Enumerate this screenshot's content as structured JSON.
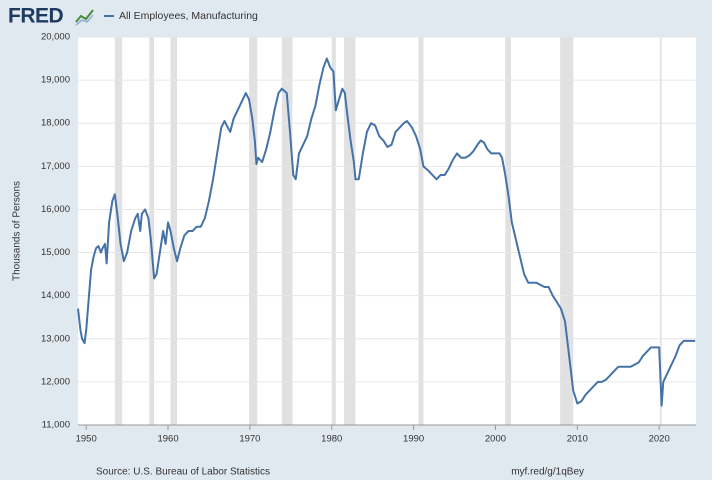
{
  "chart_data": {
    "type": "line",
    "logo": "FRED",
    "axis_label_y": "Thousands of Persons",
    "source": "Source: U.S. Bureau of Labor Statistics",
    "link": "myf.red/g/1qBey",
    "xlim": [
      1949,
      2024.5
    ],
    "xticks": [
      1950,
      1960,
      1970,
      1980,
      1990,
      2000,
      2010,
      2020
    ],
    "ylim": [
      11000,
      20000
    ],
    "yticks": [
      {
        "value": 11000,
        "label": "11,000"
      },
      {
        "value": 12000,
        "label": "12,000"
      },
      {
        "value": 13000,
        "label": "13,000"
      },
      {
        "value": 14000,
        "label": "14,000"
      },
      {
        "value": 15000,
        "label": "15,000"
      },
      {
        "value": 16000,
        "label": "16,000"
      },
      {
        "value": 17000,
        "label": "17,000"
      },
      {
        "value": 18000,
        "label": "18,000"
      },
      {
        "value": 19000,
        "label": "19,000"
      },
      {
        "value": 20000,
        "label": "20,000"
      }
    ],
    "grid": true,
    "recession_color": "#e1e1e1",
    "recessions": [
      [
        1953.5,
        1954.4
      ],
      [
        1957.7,
        1958.3
      ],
      [
        1960.3,
        1961.1
      ],
      [
        1969.9,
        1970.9
      ],
      [
        1973.9,
        1975.2
      ],
      [
        1980.0,
        1980.5
      ],
      [
        1981.5,
        1982.9
      ],
      [
        1990.6,
        1991.2
      ],
      [
        2001.2,
        2001.9
      ],
      [
        2007.9,
        2009.5
      ],
      [
        2020.1,
        2020.3
      ]
    ],
    "x": [
      1949.0,
      1949.3,
      1949.5,
      1949.8,
      1950.0,
      1950.3,
      1950.6,
      1950.9,
      1951.2,
      1951.5,
      1951.8,
      1952.0,
      1952.3,
      1952.5,
      1952.8,
      1953.2,
      1953.5,
      1953.8,
      1954.2,
      1954.6,
      1955.0,
      1955.5,
      1956.0,
      1956.3,
      1956.6,
      1956.8,
      1957.2,
      1957.6,
      1957.9,
      1958.3,
      1958.6,
      1959.0,
      1959.4,
      1959.7,
      1960.0,
      1960.3,
      1960.7,
      1961.1,
      1961.5,
      1962.0,
      1962.5,
      1963.0,
      1963.5,
      1964.0,
      1964.5,
      1965.0,
      1965.5,
      1966.0,
      1966.5,
      1966.9,
      1967.3,
      1967.6,
      1968.0,
      1968.5,
      1969.0,
      1969.5,
      1969.9,
      1970.3,
      1970.6,
      1970.8,
      1971.0,
      1971.5,
      1972.0,
      1972.5,
      1973.0,
      1973.5,
      1973.9,
      1974.5,
      1974.9,
      1975.3,
      1975.6,
      1976.0,
      1976.5,
      1977.0,
      1977.5,
      1978.0,
      1978.5,
      1979.0,
      1979.4,
      1979.8,
      1980.2,
      1980.5,
      1980.8,
      1981.3,
      1981.6,
      1981.9,
      1982.3,
      1982.7,
      1982.9,
      1983.3,
      1983.8,
      1984.3,
      1984.8,
      1985.3,
      1985.8,
      1986.3,
      1986.8,
      1987.3,
      1987.8,
      1988.3,
      1988.8,
      1989.2,
      1989.8,
      1990.3,
      1990.8,
      1991.2,
      1991.8,
      1992.3,
      1992.8,
      1993.3,
      1993.8,
      1994.3,
      1994.8,
      1995.3,
      1995.8,
      1996.3,
      1996.8,
      1997.3,
      1997.8,
      1998.2,
      1998.6,
      1999.0,
      1999.5,
      2000.0,
      2000.5,
      2000.8,
      2001.2,
      2001.6,
      2002.0,
      2002.5,
      2003.0,
      2003.5,
      2004.0,
      2004.5,
      2005.0,
      2005.5,
      2006.0,
      2006.5,
      2007.0,
      2007.5,
      2008.0,
      2008.5,
      2009.0,
      2009.5,
      2010.0,
      2010.5,
      2011.0,
      2011.5,
      2012.0,
      2012.5,
      2013.0,
      2013.5,
      2014.0,
      2014.5,
      2015.0,
      2015.5,
      2016.0,
      2016.5,
      2017.0,
      2017.5,
      2018.0,
      2018.5,
      2019.0,
      2019.5,
      2020.0,
      2020.3,
      2020.5,
      2021.0,
      2021.5,
      2022.0,
      2022.5,
      2023.0,
      2023.5,
      2024.0,
      2024.4
    ],
    "series": [
      {
        "name": "All Employees, Manufacturing",
        "color": "#4572a7",
        "values": [
          13700,
          13200,
          13000,
          12900,
          13200,
          13900,
          14600,
          14900,
          15100,
          15150,
          15000,
          15100,
          15200,
          14750,
          15700,
          16200,
          16350,
          15900,
          15200,
          14800,
          15000,
          15500,
          15800,
          15900,
          15500,
          15900,
          16000,
          15800,
          15300,
          14400,
          14500,
          15000,
          15500,
          15200,
          15700,
          15500,
          15100,
          14800,
          15100,
          15400,
          15500,
          15500,
          15600,
          15600,
          15800,
          16200,
          16700,
          17300,
          17900,
          18050,
          17900,
          17800,
          18100,
          18300,
          18500,
          18700,
          18550,
          18100,
          17600,
          17050,
          17200,
          17100,
          17400,
          17800,
          18300,
          18700,
          18800,
          18700,
          17800,
          16800,
          16700,
          17300,
          17500,
          17700,
          18100,
          18400,
          18900,
          19300,
          19500,
          19300,
          19200,
          18300,
          18500,
          18800,
          18700,
          18200,
          17600,
          17100,
          16700,
          16700,
          17300,
          17800,
          18000,
          17950,
          17700,
          17600,
          17450,
          17500,
          17800,
          17900,
          18000,
          18050,
          17900,
          17700,
          17400,
          17000,
          16900,
          16800,
          16700,
          16800,
          16800,
          16950,
          17150,
          17300,
          17200,
          17200,
          17250,
          17350,
          17500,
          17600,
          17550,
          17400,
          17300,
          17300,
          17300,
          17200,
          16800,
          16300,
          15700,
          15300,
          14900,
          14500,
          14300,
          14300,
          14300,
          14250,
          14200,
          14200,
          14000,
          13850,
          13700,
          13400,
          12600,
          11800,
          11500,
          11550,
          11700,
          11800,
          11900,
          12000,
          12000,
          12050,
          12150,
          12250,
          12350,
          12350,
          12350,
          12350,
          12400,
          12450,
          12600,
          12700,
          12800,
          12800,
          12800,
          11450,
          12000,
          12200,
          12400,
          12600,
          12850,
          12950,
          12950,
          12950,
          12950
        ]
      }
    ]
  }
}
